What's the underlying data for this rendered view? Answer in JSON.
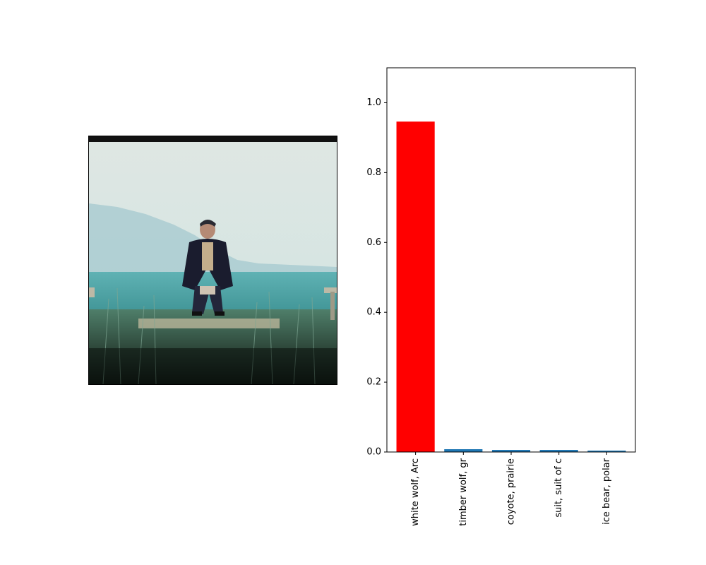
{
  "chart_data": {
    "type": "bar",
    "title": "",
    "xlabel": "",
    "ylabel": "",
    "categories": [
      "white wolf, Arc",
      "timber wolf, gr",
      "coyote, prairie",
      "suit, suit of c",
      "ice bear, polar"
    ],
    "values": [
      0.946,
      0.008,
      0.006,
      0.006,
      0.004
    ],
    "ylim": [
      0,
      1.1
    ],
    "yticks": [
      "0.0",
      "0.2",
      "0.4",
      "0.6",
      "0.8",
      "1.0"
    ],
    "bar_colors": [
      "#ff0000",
      "#1f77b4",
      "#1f77b4",
      "#1f77b4",
      "#1f77b4"
    ],
    "grid": false,
    "legend": "none"
  }
}
